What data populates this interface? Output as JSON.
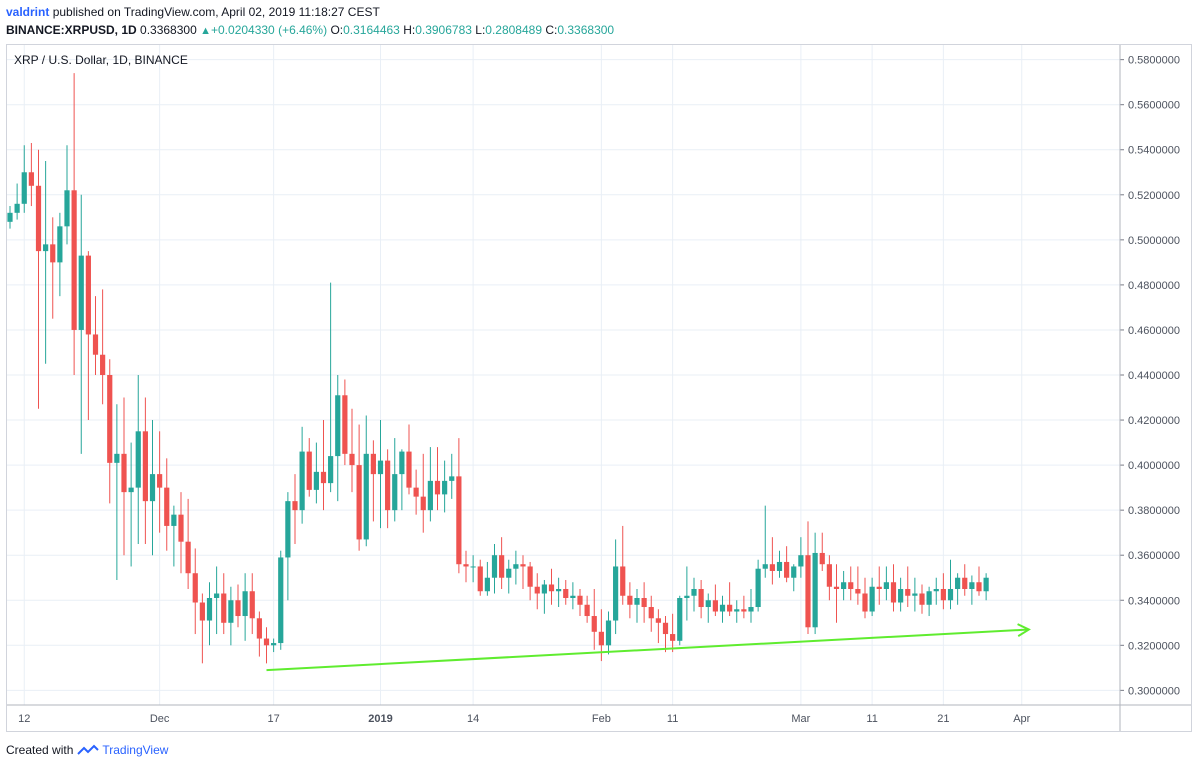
{
  "header": {
    "user": "valdrint",
    "published_text": "published on TradingView.com, April 02, 2019 11:18:27 CEST",
    "symbol": "BINANCE:XRPUSD, 1D",
    "last": "0.3368300",
    "change": "+0.0204330 (+6.46%)",
    "o_label": "O:",
    "o_value": "0.3164463",
    "h_label": "H:",
    "h_value": "0.3906783",
    "l_label": "L:",
    "l_value": "0.2808489",
    "c_label": "C:",
    "c_value": "0.3368300"
  },
  "footer": {
    "created_with": "Created with",
    "brand": "TradingView",
    "icon": "tradingview-logo-icon"
  },
  "colors": {
    "up": "#26a69a",
    "down": "#ef5350",
    "trendline": "#5fec2f",
    "grid": "#e9eff6",
    "axis_text": "#4c525e",
    "user": "#2962ff"
  },
  "chart_data": {
    "type": "candlestick",
    "title": "XRP / U.S. Dollar, 1D, BINANCE",
    "ylim": [
      0.2935,
      0.5865
    ],
    "y_ticks": [
      "0.3000000",
      "0.3200000",
      "0.3400000",
      "0.3600000",
      "0.3800000",
      "0.4000000",
      "0.4200000",
      "0.4400000",
      "0.4600000",
      "0.4800000",
      "0.5000000",
      "0.5200000",
      "0.5400000",
      "0.5600000",
      "0.5800000"
    ],
    "x_ticks": [
      {
        "label": "12",
        "index": 2
      },
      {
        "label": "Dec",
        "index": 21
      },
      {
        "label": "17",
        "index": 37
      },
      {
        "label": "2019",
        "index": 52
      },
      {
        "label": "14",
        "index": 65
      },
      {
        "label": "Feb",
        "index": 83
      },
      {
        "label": "11",
        "index": 93
      },
      {
        "label": "Mar",
        "index": 111
      },
      {
        "label": "11",
        "index": 121
      },
      {
        "label": "21",
        "index": 131
      },
      {
        "label": "Apr",
        "index": 142
      }
    ],
    "trendline": {
      "from": {
        "index": 36,
        "value": 0.309
      },
      "to": {
        "index": 143,
        "value": 0.327
      }
    },
    "candles": [
      [
        0.508,
        0.515,
        0.505,
        0.512
      ],
      [
        0.512,
        0.525,
        0.509,
        0.516
      ],
      [
        0.516,
        0.542,
        0.512,
        0.53
      ],
      [
        0.53,
        0.543,
        0.515,
        0.524
      ],
      [
        0.524,
        0.54,
        0.425,
        0.495
      ],
      [
        0.495,
        0.535,
        0.445,
        0.498
      ],
      [
        0.498,
        0.51,
        0.465,
        0.49
      ],
      [
        0.49,
        0.512,
        0.475,
        0.506
      ],
      [
        0.506,
        0.542,
        0.498,
        0.522
      ],
      [
        0.522,
        0.574,
        0.44,
        0.46
      ],
      [
        0.46,
        0.52,
        0.405,
        0.493
      ],
      [
        0.493,
        0.495,
        0.42,
        0.458
      ],
      [
        0.458,
        0.475,
        0.44,
        0.449
      ],
      [
        0.449,
        0.478,
        0.427,
        0.44
      ],
      [
        0.44,
        0.447,
        0.383,
        0.401
      ],
      [
        0.401,
        0.427,
        0.349,
        0.405
      ],
      [
        0.405,
        0.43,
        0.36,
        0.388
      ],
      [
        0.388,
        0.41,
        0.355,
        0.39
      ],
      [
        0.39,
        0.44,
        0.365,
        0.415
      ],
      [
        0.415,
        0.43,
        0.365,
        0.384
      ],
      [
        0.384,
        0.42,
        0.36,
        0.396
      ],
      [
        0.396,
        0.415,
        0.37,
        0.39
      ],
      [
        0.39,
        0.403,
        0.362,
        0.373
      ],
      [
        0.373,
        0.382,
        0.355,
        0.378
      ],
      [
        0.378,
        0.388,
        0.352,
        0.366
      ],
      [
        0.366,
        0.385,
        0.345,
        0.352
      ],
      [
        0.352,
        0.363,
        0.325,
        0.339
      ],
      [
        0.339,
        0.343,
        0.312,
        0.331
      ],
      [
        0.331,
        0.348,
        0.32,
        0.341
      ],
      [
        0.341,
        0.355,
        0.325,
        0.343
      ],
      [
        0.343,
        0.352,
        0.325,
        0.33
      ],
      [
        0.33,
        0.346,
        0.32,
        0.34
      ],
      [
        0.34,
        0.347,
        0.328,
        0.333
      ],
      [
        0.333,
        0.352,
        0.322,
        0.344
      ],
      [
        0.344,
        0.352,
        0.325,
        0.332
      ],
      [
        0.332,
        0.335,
        0.315,
        0.323
      ],
      [
        0.323,
        0.328,
        0.312,
        0.32
      ],
      [
        0.32,
        0.323,
        0.317,
        0.321
      ],
      [
        0.321,
        0.362,
        0.318,
        0.359
      ],
      [
        0.359,
        0.388,
        0.34,
        0.384
      ],
      [
        0.384,
        0.396,
        0.365,
        0.38
      ],
      [
        0.38,
        0.417,
        0.374,
        0.406
      ],
      [
        0.406,
        0.412,
        0.386,
        0.389
      ],
      [
        0.389,
        0.41,
        0.383,
        0.397
      ],
      [
        0.397,
        0.42,
        0.38,
        0.392
      ],
      [
        0.392,
        0.481,
        0.388,
        0.404
      ],
      [
        0.404,
        0.44,
        0.384,
        0.431
      ],
      [
        0.431,
        0.438,
        0.4,
        0.405
      ],
      [
        0.405,
        0.425,
        0.388,
        0.4
      ],
      [
        0.4,
        0.418,
        0.362,
        0.367
      ],
      [
        0.367,
        0.422,
        0.364,
        0.405
      ],
      [
        0.405,
        0.411,
        0.375,
        0.396
      ],
      [
        0.396,
        0.42,
        0.372,
        0.402
      ],
      [
        0.402,
        0.407,
        0.372,
        0.38
      ],
      [
        0.38,
        0.412,
        0.375,
        0.396
      ],
      [
        0.396,
        0.407,
        0.38,
        0.406
      ],
      [
        0.406,
        0.418,
        0.387,
        0.39
      ],
      [
        0.39,
        0.398,
        0.378,
        0.386
      ],
      [
        0.386,
        0.405,
        0.37,
        0.38
      ],
      [
        0.38,
        0.408,
        0.375,
        0.393
      ],
      [
        0.393,
        0.408,
        0.38,
        0.387
      ],
      [
        0.387,
        0.402,
        0.379,
        0.393
      ],
      [
        0.393,
        0.405,
        0.385,
        0.395
      ],
      [
        0.395,
        0.412,
        0.352,
        0.356
      ],
      [
        0.356,
        0.362,
        0.348,
        0.355
      ],
      [
        0.355,
        0.36,
        0.348,
        0.355
      ],
      [
        0.355,
        0.358,
        0.342,
        0.344
      ],
      [
        0.344,
        0.357,
        0.342,
        0.35
      ],
      [
        0.35,
        0.365,
        0.343,
        0.36
      ],
      [
        0.36,
        0.368,
        0.345,
        0.35
      ],
      [
        0.35,
        0.358,
        0.343,
        0.354
      ],
      [
        0.354,
        0.362,
        0.347,
        0.356
      ],
      [
        0.356,
        0.36,
        0.345,
        0.355
      ],
      [
        0.355,
        0.357,
        0.34,
        0.346
      ],
      [
        0.346,
        0.352,
        0.336,
        0.343
      ],
      [
        0.343,
        0.349,
        0.334,
        0.347
      ],
      [
        0.347,
        0.354,
        0.338,
        0.344
      ],
      [
        0.344,
        0.35,
        0.337,
        0.345
      ],
      [
        0.345,
        0.349,
        0.338,
        0.341
      ],
      [
        0.341,
        0.348,
        0.336,
        0.342
      ],
      [
        0.342,
        0.345,
        0.333,
        0.338
      ],
      [
        0.338,
        0.342,
        0.33,
        0.333
      ],
      [
        0.333,
        0.345,
        0.318,
        0.326
      ],
      [
        0.326,
        0.336,
        0.313,
        0.32
      ],
      [
        0.32,
        0.335,
        0.316,
        0.331
      ],
      [
        0.331,
        0.367,
        0.325,
        0.355
      ],
      [
        0.355,
        0.373,
        0.338,
        0.342
      ],
      [
        0.342,
        0.348,
        0.332,
        0.338
      ],
      [
        0.338,
        0.345,
        0.33,
        0.341
      ],
      [
        0.341,
        0.348,
        0.33,
        0.337
      ],
      [
        0.337,
        0.342,
        0.326,
        0.332
      ],
      [
        0.332,
        0.336,
        0.321,
        0.33
      ],
      [
        0.33,
        0.333,
        0.317,
        0.325
      ],
      [
        0.325,
        0.334,
        0.317,
        0.322
      ],
      [
        0.322,
        0.342,
        0.32,
        0.341
      ],
      [
        0.341,
        0.355,
        0.331,
        0.342
      ],
      [
        0.342,
        0.35,
        0.335,
        0.345
      ],
      [
        0.345,
        0.349,
        0.332,
        0.337
      ],
      [
        0.337,
        0.343,
        0.33,
        0.34
      ],
      [
        0.34,
        0.347,
        0.333,
        0.335
      ],
      [
        0.335,
        0.342,
        0.33,
        0.338
      ],
      [
        0.338,
        0.348,
        0.333,
        0.335
      ],
      [
        0.335,
        0.34,
        0.33,
        0.336
      ],
      [
        0.336,
        0.342,
        0.332,
        0.335
      ],
      [
        0.335,
        0.345,
        0.33,
        0.337
      ],
      [
        0.337,
        0.358,
        0.335,
        0.354
      ],
      [
        0.354,
        0.382,
        0.35,
        0.356
      ],
      [
        0.356,
        0.368,
        0.347,
        0.353
      ],
      [
        0.353,
        0.362,
        0.35,
        0.357
      ],
      [
        0.357,
        0.364,
        0.348,
        0.35
      ],
      [
        0.35,
        0.356,
        0.344,
        0.355
      ],
      [
        0.355,
        0.368,
        0.35,
        0.36
      ],
      [
        0.36,
        0.375,
        0.325,
        0.328
      ],
      [
        0.328,
        0.37,
        0.325,
        0.361
      ],
      [
        0.361,
        0.37,
        0.353,
        0.356
      ],
      [
        0.356,
        0.36,
        0.34,
        0.346
      ],
      [
        0.346,
        0.356,
        0.33,
        0.345
      ],
      [
        0.345,
        0.353,
        0.34,
        0.348
      ],
      [
        0.348,
        0.355,
        0.34,
        0.345
      ],
      [
        0.345,
        0.355,
        0.338,
        0.343
      ],
      [
        0.343,
        0.35,
        0.332,
        0.335
      ],
      [
        0.335,
        0.35,
        0.333,
        0.346
      ],
      [
        0.346,
        0.355,
        0.338,
        0.345
      ],
      [
        0.345,
        0.355,
        0.34,
        0.348
      ],
      [
        0.348,
        0.356,
        0.335,
        0.339
      ],
      [
        0.339,
        0.35,
        0.335,
        0.345
      ],
      [
        0.345,
        0.355,
        0.337,
        0.342
      ],
      [
        0.342,
        0.35,
        0.335,
        0.343
      ],
      [
        0.343,
        0.347,
        0.334,
        0.338
      ],
      [
        0.338,
        0.346,
        0.333,
        0.344
      ],
      [
        0.344,
        0.35,
        0.338,
        0.345
      ],
      [
        0.345,
        0.352,
        0.336,
        0.34
      ],
      [
        0.34,
        0.358,
        0.336,
        0.345
      ],
      [
        0.345,
        0.352,
        0.338,
        0.35
      ],
      [
        0.35,
        0.356,
        0.342,
        0.345
      ],
      [
        0.345,
        0.351,
        0.338,
        0.348
      ],
      [
        0.348,
        0.355,
        0.342,
        0.344
      ],
      [
        0.344,
        0.352,
        0.34,
        0.35
      ]
    ]
  }
}
